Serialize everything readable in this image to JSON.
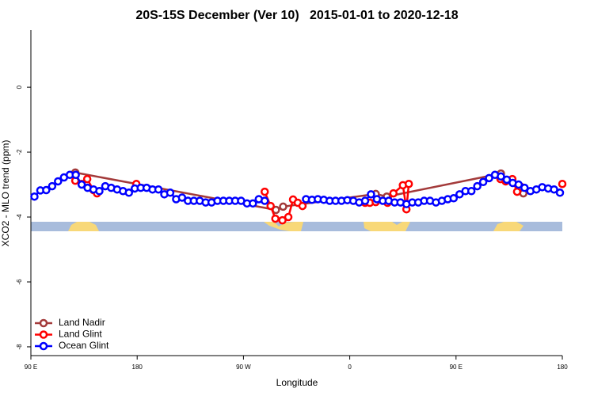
{
  "chart_data": {
    "type": "line",
    "title": "20S-15S December (Ver 10)   2015-01-01 to 2020-12-18",
    "x_label": "Longitude",
    "y_label": "XCO2 - MLO trend (ppm)",
    "xlim": [
      90,
      540
    ],
    "ylim": [
      -8.27,
      1.76
    ],
    "xticks": [
      {
        "value": 90,
        "label": "90 E"
      },
      180,
      {
        "value": 270,
        "label": "90 W"
      },
      {
        "value": 360,
        "label": "0"
      },
      {
        "value": 450,
        "label": "90 E"
      },
      {
        "value": 540,
        "label": "180"
      }
    ],
    "yticks": [
      -8,
      -6,
      -4,
      -2,
      0
    ],
    "legend": "bottom-left",
    "series": [
      {
        "name": "Land Nadir",
        "color": "#a33a3a",
        "x": [
          127.6,
          297.5,
          303.6,
          382,
          391.4,
          488,
          507
        ],
        "values": [
          -2.63,
          -3.78,
          -3.68,
          -3.29,
          -3.37,
          -2.66,
          -3.27
        ]
      },
      {
        "name": "Land Glint",
        "color": "#ff0000",
        "x": [
          127.6,
          133,
          137.7,
          143,
          146,
          160,
          179.3,
          250,
          288,
          293,
          297,
          303,
          308,
          312,
          316,
          320,
          350,
          373,
          377,
          382,
          392,
          397,
          405,
          408,
          410,
          450,
          487.6,
          492,
          497.7,
          501.7,
          505,
          520,
          540
        ],
        "values": [
          -2.88,
          -2.98,
          -2.83,
          -3.17,
          -3.27,
          null,
          -2.98,
          null,
          -3.22,
          -3.66,
          -4.05,
          -4.1,
          -4.0,
          -3.46,
          -3.56,
          -3.66,
          null,
          -3.56,
          -3.56,
          -3.54,
          -3.56,
          -3.27,
          -3.02,
          -3.76,
          -2.98,
          null,
          -2.83,
          -2.9,
          -2.83,
          -3.22,
          -3.07,
          null,
          -2.98
        ]
      },
      {
        "name": "Ocean Glint",
        "color": "#0000ff",
        "x": [
          93,
          98,
          103,
          108,
          113,
          118,
          123,
          128,
          133,
          138,
          143,
          148,
          153,
          158,
          163,
          168,
          173,
          178,
          183,
          188,
          193,
          198,
          203,
          208,
          213,
          218,
          223,
          228,
          233,
          238,
          243,
          248,
          253,
          258,
          263,
          268,
          273,
          278,
          283,
          288,
          305,
          323,
          328,
          333,
          338,
          343,
          348,
          353,
          358,
          363,
          368,
          373,
          378,
          383,
          388,
          393,
          398,
          403,
          408,
          413,
          418,
          423,
          428,
          433,
          438,
          443,
          448,
          453,
          458,
          463,
          468,
          473,
          478,
          483,
          488,
          493,
          498,
          503,
          508,
          513,
          518,
          523,
          528,
          533,
          538
        ],
        "values": [
          -3.37,
          -3.18,
          -3.17,
          -3.05,
          -2.9,
          -2.78,
          -2.7,
          -2.7,
          -3.0,
          -3.1,
          -3.15,
          -3.2,
          -3.05,
          -3.1,
          -3.15,
          -3.2,
          -3.25,
          -3.12,
          -3.1,
          -3.1,
          -3.15,
          -3.15,
          -3.3,
          -3.25,
          -3.45,
          -3.4,
          -3.5,
          -3.5,
          -3.5,
          -3.55,
          -3.55,
          -3.5,
          -3.5,
          -3.5,
          -3.5,
          -3.5,
          -3.58,
          -3.58,
          -3.45,
          -3.5,
          null,
          -3.45,
          -3.47,
          -3.45,
          -3.47,
          -3.5,
          -3.5,
          -3.5,
          -3.48,
          -3.5,
          -3.55,
          -3.5,
          -3.3,
          -3.45,
          -3.5,
          -3.5,
          -3.55,
          -3.55,
          -3.6,
          -3.55,
          -3.55,
          -3.5,
          -3.5,
          -3.55,
          -3.5,
          -3.45,
          -3.42,
          -3.3,
          -3.2,
          -3.2,
          -3.05,
          -2.92,
          -2.8,
          -2.7,
          -2.75,
          -2.85,
          -2.95,
          -3.0,
          -3.1,
          -3.2,
          -3.15,
          -3.08,
          -3.12,
          -3.15,
          -3.25
        ]
      }
    ]
  }
}
